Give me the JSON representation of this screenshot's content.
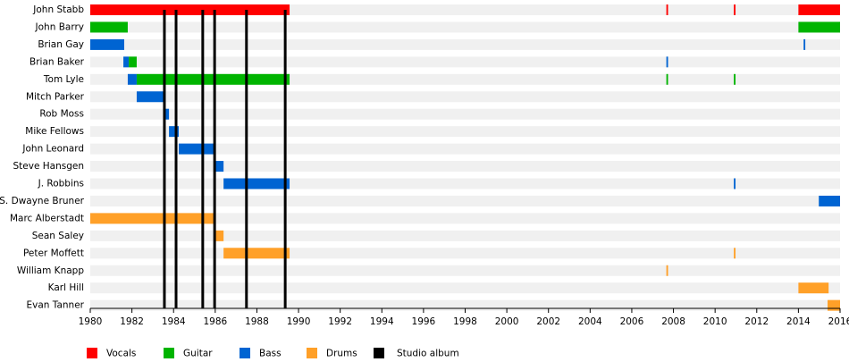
{
  "chart_data": {
    "type": "timeline",
    "xlim": [
      1980,
      2016
    ],
    "xticks": [
      1980,
      1982,
      1984,
      1986,
      1988,
      1990,
      1992,
      1994,
      1996,
      1998,
      2000,
      2002,
      2004,
      2006,
      2008,
      2010,
      2012,
      2014,
      2016
    ],
    "roles": [
      {
        "name": "Vocals",
        "color": "#ff0000"
      },
      {
        "name": "Guitar",
        "color": "#00b400"
      },
      {
        "name": "Bass",
        "color": "#0064d2"
      },
      {
        "name": "Drums",
        "color": "#ffa028"
      }
    ],
    "album_label": "Studio album",
    "album_color": "#000000",
    "albums": [
      1983.56,
      1984.12,
      1985.4,
      1985.97,
      1987.5,
      1989.36
    ],
    "members": [
      {
        "name": "John Stabb",
        "periods": [
          {
            "role": "Vocals",
            "start": 1980,
            "end": 1989.57
          },
          {
            "role": "Vocals",
            "start": 2007.66,
            "end": 2007.74
          },
          {
            "role": "Vocals",
            "start": 2010.9,
            "end": 2010.98
          },
          {
            "role": "Vocals",
            "start": 2014,
            "end": 2016
          }
        ]
      },
      {
        "name": "John Barry",
        "periods": [
          {
            "role": "Guitar",
            "start": 1980,
            "end": 1981.8
          },
          {
            "role": "Guitar",
            "start": 2014,
            "end": 2016
          }
        ]
      },
      {
        "name": "Brian Gay",
        "periods": [
          {
            "role": "Bass",
            "start": 1980,
            "end": 1981.63
          },
          {
            "role": "Bass",
            "start": 2014.25,
            "end": 2014.33
          }
        ]
      },
      {
        "name": "Brian Baker",
        "periods": [
          {
            "role": "Bass",
            "start": 1981.59,
            "end": 1981.85
          },
          {
            "role": "Guitar",
            "start": 1981.85,
            "end": 1982.23
          },
          {
            "role": "Bass",
            "start": 2007.66,
            "end": 2007.74
          }
        ]
      },
      {
        "name": "Tom Lyle",
        "periods": [
          {
            "role": "Bass",
            "start": 1981.8,
            "end": 1982.23
          },
          {
            "role": "Guitar",
            "start": 1982.23,
            "end": 1989.57
          },
          {
            "role": "Guitar",
            "start": 2007.66,
            "end": 2007.74
          },
          {
            "role": "Guitar",
            "start": 2010.9,
            "end": 2010.98
          }
        ]
      },
      {
        "name": "Mitch Parker",
        "periods": [
          {
            "role": "Bass",
            "start": 1982.23,
            "end": 1983.56
          }
        ]
      },
      {
        "name": "Rob Moss",
        "periods": [
          {
            "role": "Bass",
            "start": 1983.56,
            "end": 1983.78
          }
        ]
      },
      {
        "name": "Mike Fellows",
        "periods": [
          {
            "role": "Bass",
            "start": 1983.78,
            "end": 1984.25
          }
        ]
      },
      {
        "name": "John Leonard",
        "periods": [
          {
            "role": "Bass",
            "start": 1984.25,
            "end": 1986.0
          }
        ]
      },
      {
        "name": "Steve Hansgen",
        "periods": [
          {
            "role": "Bass",
            "start": 1986.0,
            "end": 1986.4
          }
        ]
      },
      {
        "name": "J. Robbins",
        "periods": [
          {
            "role": "Bass",
            "start": 1986.4,
            "end": 1989.57
          },
          {
            "role": "Bass",
            "start": 2010.9,
            "end": 2010.98
          }
        ]
      },
      {
        "name": "S. Dwayne Bruner",
        "periods": [
          {
            "role": "Bass",
            "start": 2014.98,
            "end": 2016
          }
        ]
      },
      {
        "name": "Marc Alberstadt",
        "periods": [
          {
            "role": "Drums",
            "start": 1980,
            "end": 1986.0
          }
        ]
      },
      {
        "name": "Sean Saley",
        "periods": [
          {
            "role": "Drums",
            "start": 1986.0,
            "end": 1986.4
          }
        ]
      },
      {
        "name": "Peter Moffett",
        "periods": [
          {
            "role": "Drums",
            "start": 1986.4,
            "end": 1989.57
          },
          {
            "role": "Drums",
            "start": 2010.9,
            "end": 2010.98
          }
        ]
      },
      {
        "name": "William Knapp",
        "periods": [
          {
            "role": "Drums",
            "start": 2007.66,
            "end": 2007.74
          }
        ]
      },
      {
        "name": "Karl Hill",
        "periods": [
          {
            "role": "Drums",
            "start": 2014,
            "end": 2015.45
          }
        ]
      },
      {
        "name": "Evan Tanner",
        "periods": [
          {
            "role": "Drums",
            "start": 2015.4,
            "end": 2016
          }
        ]
      }
    ]
  }
}
